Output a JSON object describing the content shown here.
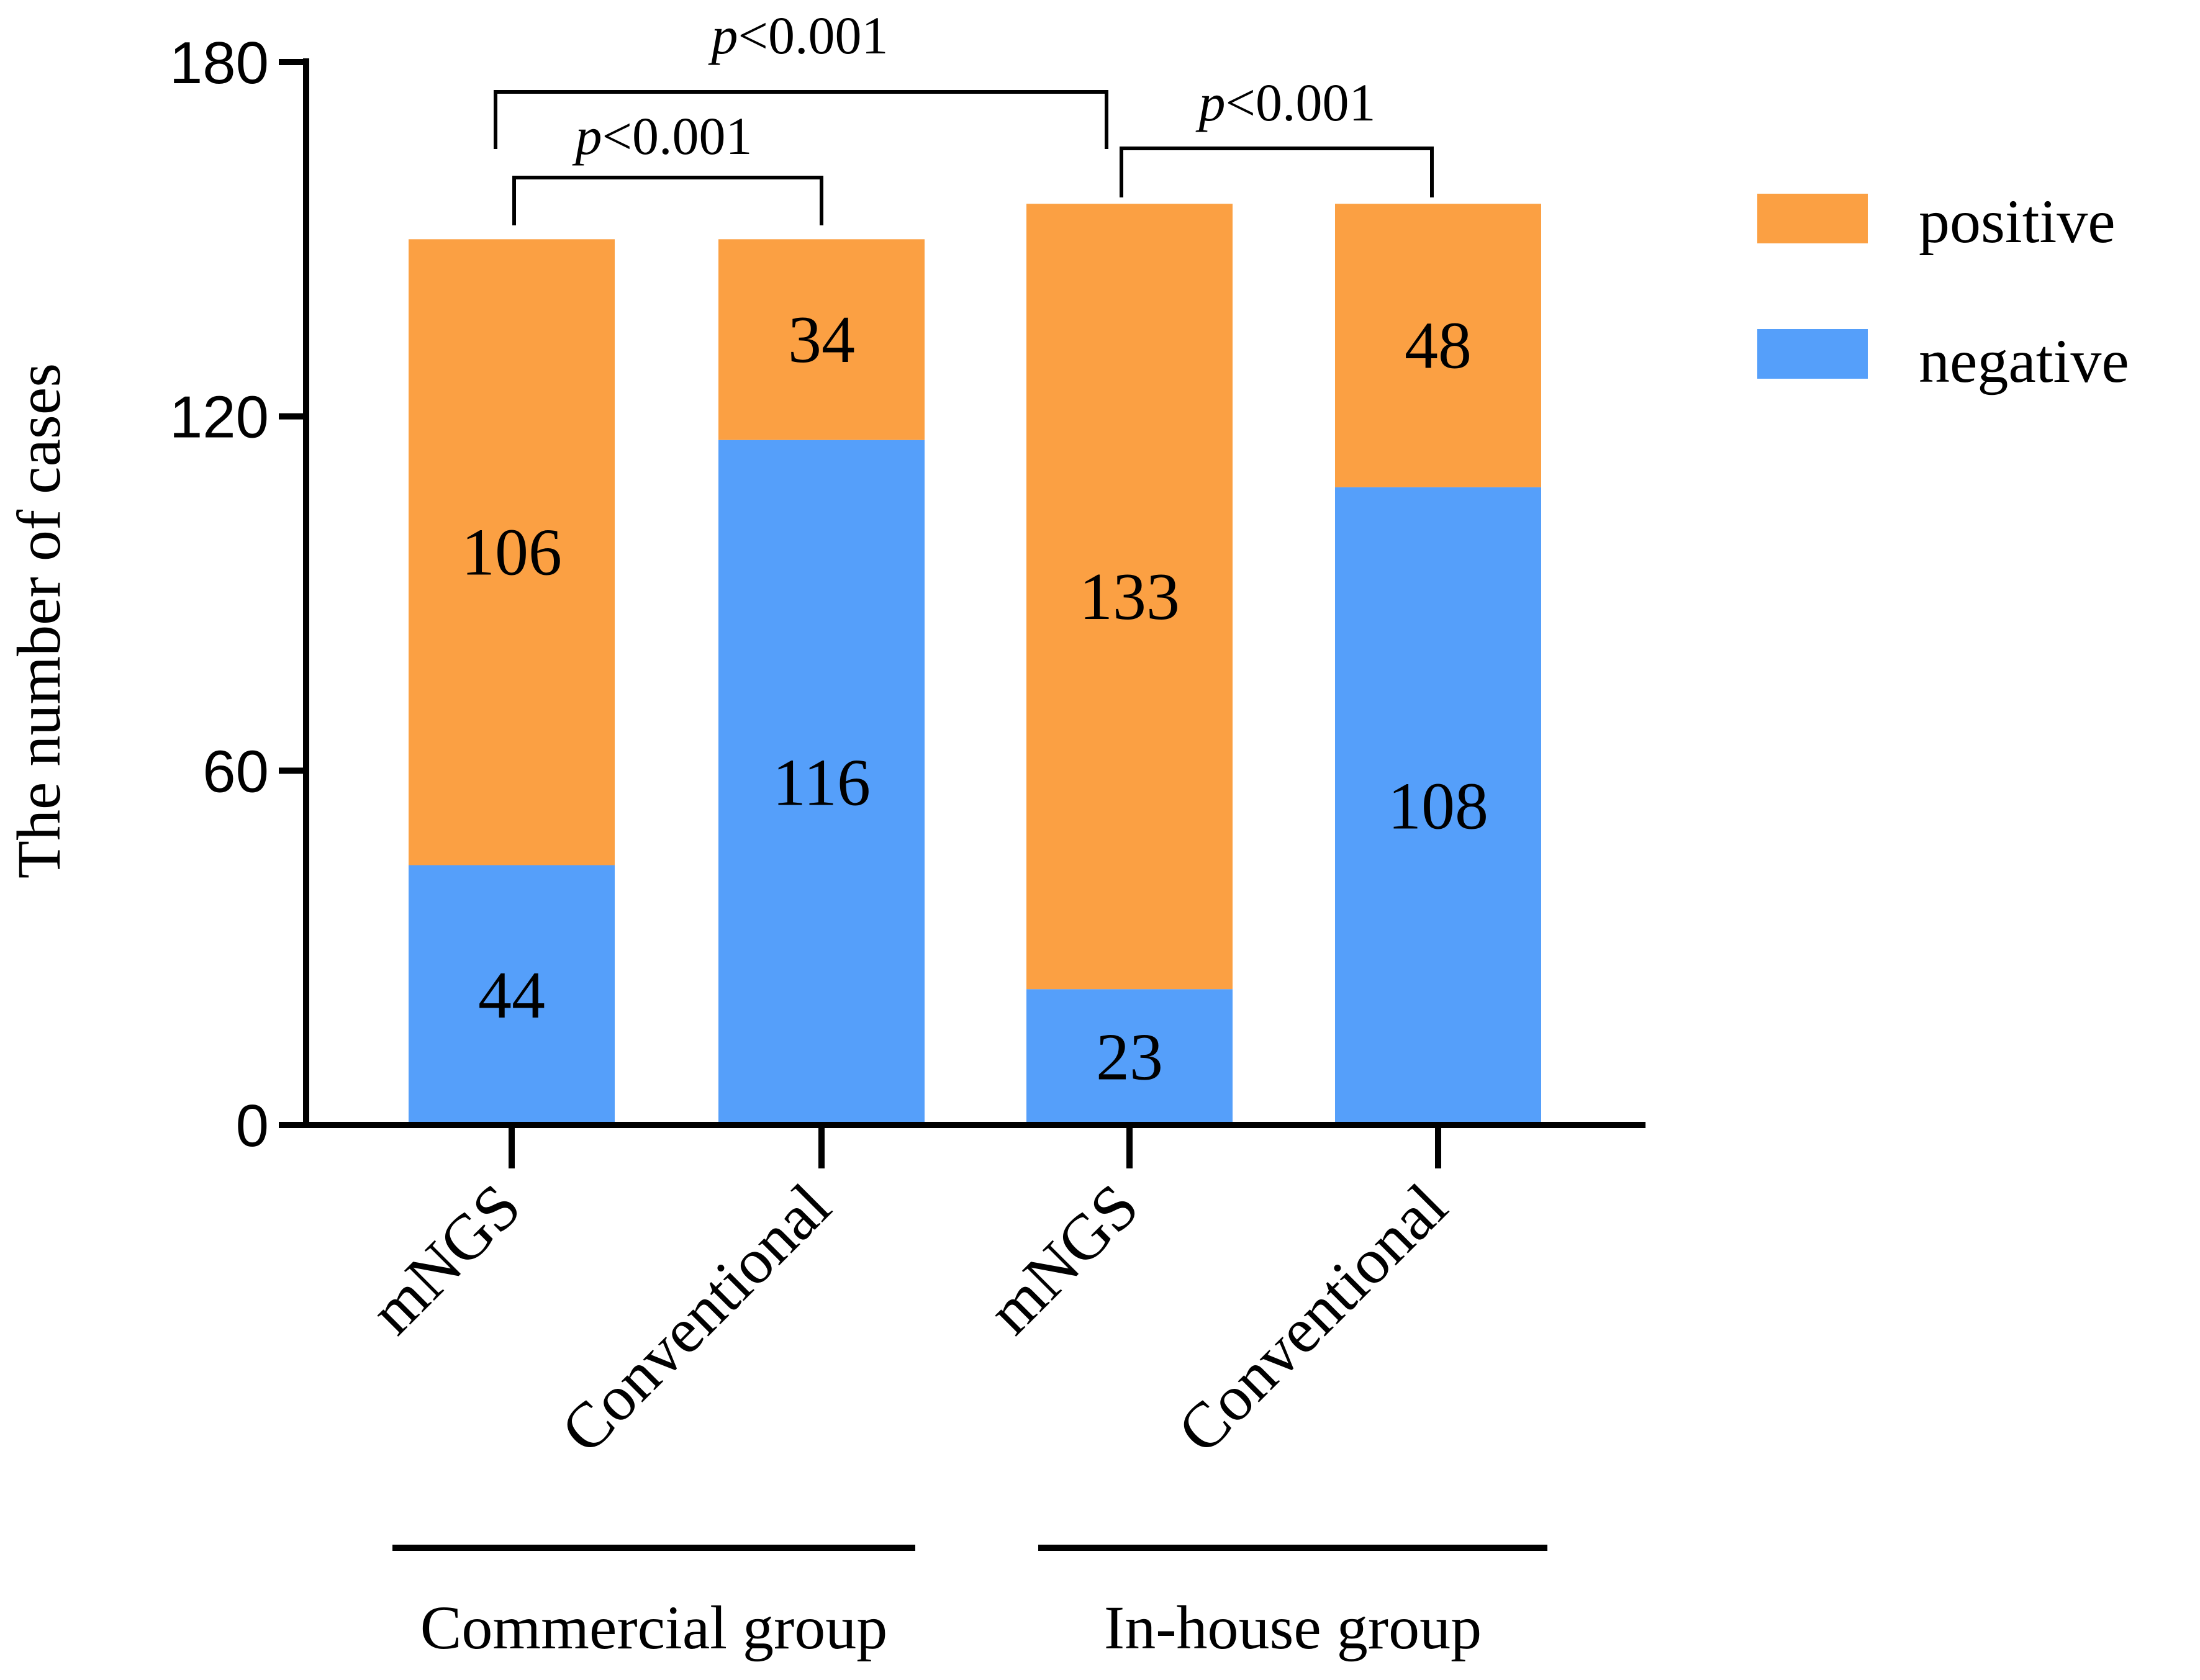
{
  "chart_data": {
    "type": "bar",
    "stacked": true,
    "ylabel": "The number of cases",
    "ylim": [
      0,
      180
    ],
    "yticks": [
      "0",
      "60",
      "120",
      "180"
    ],
    "categories": [
      "mNGS",
      "Conventional",
      "mNGS",
      "Conventional"
    ],
    "groups": [
      {
        "label": "Commercial group",
        "categories": [
          0,
          1
        ]
      },
      {
        "label": "In-house group",
        "categories": [
          2,
          3
        ]
      }
    ],
    "series": [
      {
        "name": "negative",
        "color": "#559ffa",
        "values": [
          44,
          116,
          23,
          108
        ]
      },
      {
        "name": "positive",
        "color": "#fba043",
        "values": [
          106,
          34,
          133,
          48
        ]
      }
    ],
    "legend": {
      "position": "top-right",
      "order": [
        "positive",
        "negative"
      ]
    },
    "annotations": [
      {
        "italic": "p",
        "text": "<0.001",
        "from": 0,
        "to": 1
      },
      {
        "italic": "p",
        "text": "<0.001",
        "from": 0,
        "to": 2
      },
      {
        "italic": "p",
        "text": "<0.001",
        "from": 2,
        "to": 3
      }
    ]
  }
}
